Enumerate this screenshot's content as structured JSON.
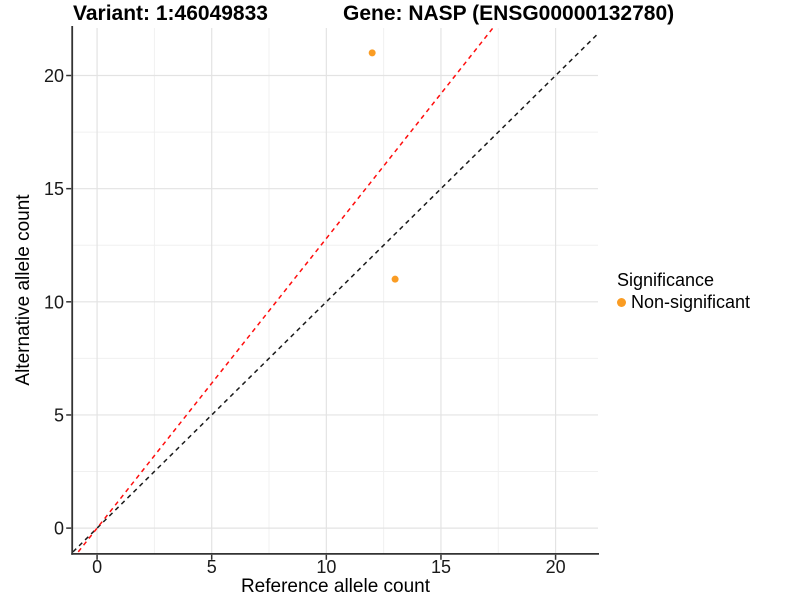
{
  "chart_data": {
    "type": "scatter",
    "title_left": "Variant: 1:46049833",
    "title_right": "Gene: NASP (ENSG00000132780)",
    "xlabel": "Reference allele count",
    "ylabel": "Alternative allele count",
    "xlim": [
      -1.05,
      21.85
    ],
    "ylim": [
      -1.1,
      22.1
    ],
    "x_ticks": [
      0,
      5,
      10,
      15,
      20
    ],
    "y_ticks": [
      0,
      5,
      10,
      15,
      20
    ],
    "minor_ticks": [
      2.5,
      7.5,
      12.5,
      17.5
    ],
    "grid": true,
    "points": [
      {
        "x": 12,
        "y": 21,
        "series": "Non-significant"
      },
      {
        "x": 13,
        "y": 11,
        "series": "Non-significant"
      }
    ],
    "point_color": "#FA9C23",
    "point_radius": 3.5,
    "lines": [
      {
        "name": "identity",
        "slope": 1,
        "intercept": 0,
        "color": "#1A1A1A",
        "style": "dashed"
      },
      {
        "name": "allelic-ratio",
        "slope": 1.28,
        "intercept": 0,
        "color": "#FF0D0D",
        "style": "dashed"
      }
    ],
    "legend": {
      "position": "right",
      "title": "Significance",
      "items": [
        {
          "label": "Non-significant",
          "color": "#FA9C23"
        }
      ]
    }
  },
  "colors": {
    "background": "#FFFFFF",
    "grid_major": "#E3E3E3",
    "grid_minor": "#F0F0F0",
    "axis_line": "#333333",
    "tick_text": "#1A1A1A"
  }
}
